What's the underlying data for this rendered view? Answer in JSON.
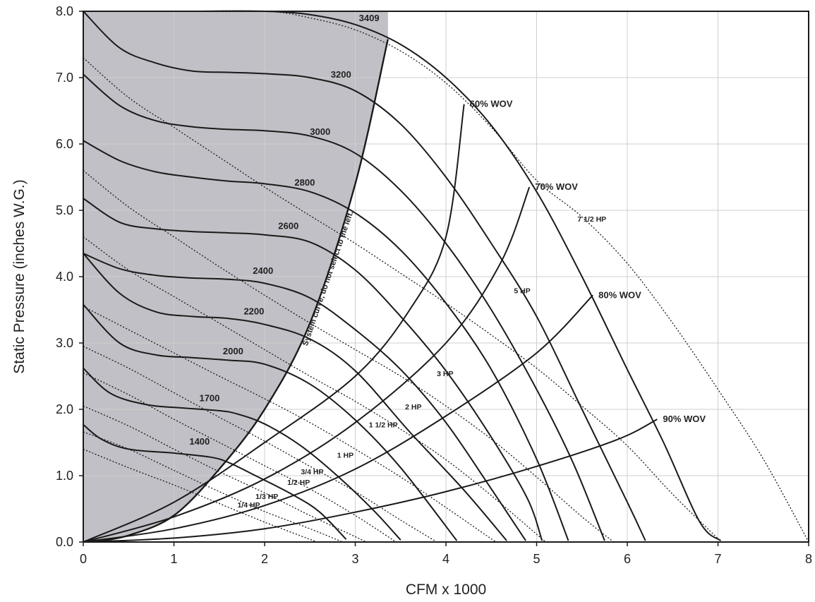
{
  "chart_data": {
    "type": "line",
    "xlabel": "CFM x 1000",
    "ylabel": "Static Pressure (inches W.G.)",
    "xlim": [
      0,
      8
    ],
    "ylim": [
      0,
      8
    ],
    "x_ticks": [
      "0",
      "1",
      "2",
      "3",
      "4",
      "5",
      "6",
      "7",
      "8"
    ],
    "y_ticks": [
      "0.0",
      "1.0",
      "2.0",
      "3.0",
      "4.0",
      "5.0",
      "6.0",
      "7.0",
      "8.0"
    ],
    "grid": true,
    "legend": "none",
    "colors": {
      "curve": "#1a1a1a",
      "shaded_region": "#c0c0c6",
      "grid": "#cfcfcf"
    },
    "system_curve": {
      "label": "System curve, do not select to the left.",
      "points": [
        [
          0.1,
          0
        ],
        [
          0.5,
          0.1
        ],
        [
          1.0,
          0.4
        ],
        [
          1.5,
          1.1
        ],
        [
          2.0,
          2.0
        ],
        [
          2.5,
          3.3
        ],
        [
          3.0,
          5.4
        ],
        [
          3.36,
          7.58
        ]
      ]
    },
    "rpm_curves": [
      {
        "name": "1400",
        "label_at": [
          1.17,
          1.47
        ],
        "points": [
          [
            0,
            1.77
          ],
          [
            0.2,
            1.55
          ],
          [
            0.5,
            1.4
          ],
          [
            1.0,
            1.34
          ],
          [
            1.4,
            1.28
          ],
          [
            1.6,
            1.2
          ],
          [
            1.9,
            1.0
          ],
          [
            2.3,
            0.72
          ],
          [
            2.6,
            0.46
          ],
          [
            2.9,
            0.04
          ]
        ]
      },
      {
        "name": "1700",
        "label_at": [
          1.28,
          2.12
        ],
        "points": [
          [
            0,
            2.62
          ],
          [
            0.3,
            2.24
          ],
          [
            0.7,
            2.07
          ],
          [
            1.1,
            2.02
          ],
          [
            1.5,
            1.98
          ],
          [
            1.7,
            1.93
          ],
          [
            2.0,
            1.78
          ],
          [
            2.4,
            1.45
          ],
          [
            2.8,
            1.0
          ],
          [
            3.2,
            0.48
          ],
          [
            3.5,
            0.03
          ]
        ]
      },
      {
        "name": "2000",
        "label_at": [
          1.54,
          2.83
        ],
        "points": [
          [
            0,
            3.58
          ],
          [
            0.4,
            3.0
          ],
          [
            0.8,
            2.82
          ],
          [
            1.2,
            2.78
          ],
          [
            1.6,
            2.74
          ],
          [
            2.0,
            2.68
          ],
          [
            2.5,
            2.38
          ],
          [
            3.0,
            1.84
          ],
          [
            3.5,
            1.12
          ],
          [
            4.12,
            0.02
          ]
        ]
      },
      {
        "name": "2200",
        "label_at": [
          1.77,
          3.43
        ],
        "points": [
          [
            0,
            4.35
          ],
          [
            0.4,
            3.75
          ],
          [
            0.8,
            3.47
          ],
          [
            1.2,
            3.4
          ],
          [
            1.6,
            3.37
          ],
          [
            2.0,
            3.28
          ],
          [
            2.5,
            3.06
          ],
          [
            3.0,
            2.58
          ],
          [
            3.6,
            1.66
          ],
          [
            4.2,
            0.78
          ],
          [
            4.67,
            0.02
          ]
        ]
      },
      {
        "name": "2600",
        "label_at": [
          2.15,
          4.72
        ],
        "points": [
          [
            0,
            5.18
          ],
          [
            0.4,
            4.82
          ],
          [
            0.8,
            4.72
          ],
          [
            1.2,
            4.68
          ],
          [
            1.6,
            4.66
          ],
          [
            2.0,
            4.63
          ],
          [
            2.5,
            4.52
          ],
          [
            3.0,
            4.1
          ],
          [
            3.5,
            3.4
          ],
          [
            4.0,
            2.58
          ],
          [
            4.5,
            1.58
          ],
          [
            4.9,
            0.65
          ],
          [
            5.06,
            0.02
          ]
        ]
      },
      {
        "name": "2400",
        "label_at": [
          1.87,
          4.04
        ],
        "points": [
          [
            0,
            4.35
          ],
          [
            0.4,
            4.12
          ],
          [
            0.8,
            4.02
          ],
          [
            1.2,
            3.98
          ],
          [
            1.6,
            3.96
          ],
          [
            2.0,
            3.9
          ],
          [
            2.5,
            3.68
          ],
          [
            3.0,
            3.2
          ],
          [
            3.5,
            2.6
          ],
          [
            4.0,
            1.8
          ],
          [
            4.5,
            0.8
          ],
          [
            4.88,
            0.02
          ]
        ]
      },
      {
        "name": "2800",
        "label_at": [
          2.33,
          5.37
        ],
        "points": [
          [
            0,
            6.05
          ],
          [
            0.4,
            5.75
          ],
          [
            0.8,
            5.58
          ],
          [
            1.2,
            5.5
          ],
          [
            1.6,
            5.44
          ],
          [
            2.0,
            5.4
          ],
          [
            2.5,
            5.28
          ],
          [
            3.0,
            4.96
          ],
          [
            3.5,
            4.4
          ],
          [
            4.0,
            3.6
          ],
          [
            4.5,
            2.6
          ],
          [
            5.0,
            1.25
          ],
          [
            5.35,
            0.02
          ]
        ]
      },
      {
        "name": "3000",
        "label_at": [
          2.5,
          6.14
        ],
        "points": [
          [
            0,
            7.05
          ],
          [
            0.4,
            6.58
          ],
          [
            0.8,
            6.35
          ],
          [
            1.2,
            6.26
          ],
          [
            1.6,
            6.22
          ],
          [
            2.0,
            6.2
          ],
          [
            2.5,
            6.12
          ],
          [
            3.0,
            5.86
          ],
          [
            3.5,
            5.3
          ],
          [
            4.0,
            4.5
          ],
          [
            4.5,
            3.5
          ],
          [
            5.0,
            2.3
          ],
          [
            5.4,
            1.2
          ],
          [
            5.75,
            0.02
          ]
        ]
      },
      {
        "name": "3200",
        "label_at": [
          2.73,
          7.0
        ],
        "points": [
          [
            0,
            8.0
          ],
          [
            0.4,
            7.45
          ],
          [
            0.8,
            7.22
          ],
          [
            1.2,
            7.1
          ],
          [
            1.6,
            7.08
          ],
          [
            2.0,
            7.06
          ],
          [
            2.5,
            7.0
          ],
          [
            3.0,
            6.8
          ],
          [
            3.5,
            6.3
          ],
          [
            4.0,
            5.5
          ],
          [
            4.5,
            4.5
          ],
          [
            5.0,
            3.4
          ],
          [
            5.5,
            2.0
          ],
          [
            6.0,
            0.6
          ],
          [
            6.2,
            0.02
          ]
        ]
      },
      {
        "name": "3409",
        "label_at": [
          3.04,
          7.85
        ],
        "points": [
          [
            0.7,
            8.0
          ],
          [
            1.2,
            8.0
          ],
          [
            2.0,
            8.0
          ],
          [
            2.5,
            7.95
          ],
          [
            3.0,
            7.8
          ],
          [
            3.5,
            7.5
          ],
          [
            4.0,
            7.0
          ],
          [
            4.5,
            6.28
          ],
          [
            5.0,
            5.28
          ],
          [
            5.5,
            4.0
          ],
          [
            6.0,
            2.6
          ],
          [
            6.4,
            1.5
          ],
          [
            6.8,
            0.3
          ],
          [
            7.03,
            0.02
          ]
        ]
      }
    ],
    "wov_lines": [
      {
        "name": "60% WOV",
        "points": [
          [
            0,
            0
          ],
          [
            1.0,
            0.6
          ],
          [
            2.0,
            1.5
          ],
          [
            3.0,
            2.5
          ],
          [
            3.6,
            3.5
          ],
          [
            4.0,
            4.6
          ],
          [
            4.2,
            6.6
          ]
        ]
      },
      {
        "name": "70% WOV",
        "points": [
          [
            0,
            0
          ],
          [
            1.0,
            0.38
          ],
          [
            2.0,
            0.95
          ],
          [
            3.0,
            1.8
          ],
          [
            4.0,
            3.0
          ],
          [
            4.6,
            4.2
          ],
          [
            4.92,
            5.35
          ]
        ]
      },
      {
        "name": "80% WOV",
        "points": [
          [
            0,
            0
          ],
          [
            1.0,
            0.2
          ],
          [
            2.0,
            0.55
          ],
          [
            3.0,
            1.1
          ],
          [
            4.0,
            1.9
          ],
          [
            5.0,
            2.85
          ],
          [
            5.62,
            3.72
          ]
        ]
      },
      {
        "name": "90% WOV",
        "points": [
          [
            0,
            0
          ],
          [
            1.0,
            0.06
          ],
          [
            2.0,
            0.2
          ],
          [
            3.0,
            0.45
          ],
          [
            4.0,
            0.76
          ],
          [
            5.0,
            1.14
          ],
          [
            5.9,
            1.55
          ],
          [
            6.33,
            1.85
          ]
        ]
      }
    ],
    "hp_lines": [
      {
        "name": "1/4 HP",
        "label_at": [
          1.7,
          0.52
        ],
        "points": [
          [
            0,
            1.4
          ],
          [
            0.5,
            1.12
          ],
          [
            1.0,
            0.86
          ],
          [
            1.5,
            0.58
          ],
          [
            2.0,
            0.3
          ],
          [
            2.58,
            0.0
          ]
        ]
      },
      {
        "name": "1/3 HP",
        "label_at": [
          1.9,
          0.65
        ],
        "points": [
          [
            0,
            1.66
          ],
          [
            0.5,
            1.4
          ],
          [
            1.0,
            1.08
          ],
          [
            1.5,
            0.76
          ],
          [
            2.0,
            0.46
          ],
          [
            2.5,
            0.2
          ],
          [
            2.86,
            0.0
          ]
        ]
      },
      {
        "name": "1/2 HP",
        "label_at": [
          2.25,
          0.86
        ],
        "points": [
          [
            0,
            2.05
          ],
          [
            0.5,
            1.75
          ],
          [
            1.0,
            1.4
          ],
          [
            1.5,
            1.06
          ],
          [
            2.0,
            0.74
          ],
          [
            2.5,
            0.4
          ],
          [
            3.0,
            0.08
          ],
          [
            3.12,
            0.0
          ]
        ]
      },
      {
        "name": "3/4 HP",
        "label_at": [
          2.4,
          1.02
        ],
        "points": [
          [
            0,
            2.55
          ],
          [
            0.5,
            2.22
          ],
          [
            1.0,
            1.85
          ],
          [
            1.5,
            1.5
          ],
          [
            2.0,
            1.15
          ],
          [
            2.5,
            0.8
          ],
          [
            3.0,
            0.4
          ],
          [
            3.45,
            0.0
          ]
        ]
      },
      {
        "name": "1 HP",
        "label_at": [
          2.8,
          1.27
        ],
        "points": [
          [
            0,
            2.95
          ],
          [
            0.5,
            2.62
          ],
          [
            1.0,
            2.25
          ],
          [
            1.5,
            1.88
          ],
          [
            2.0,
            1.52
          ],
          [
            2.5,
            1.14
          ],
          [
            3.0,
            0.76
          ],
          [
            3.5,
            0.33
          ],
          [
            3.9,
            0.0
          ]
        ]
      },
      {
        "name": "1 1/2 HP",
        "label_at": [
          3.15,
          1.73
        ],
        "points": [
          [
            0,
            3.55
          ],
          [
            0.5,
            3.2
          ],
          [
            1.0,
            2.85
          ],
          [
            1.5,
            2.5
          ],
          [
            2.0,
            2.16
          ],
          [
            2.5,
            1.8
          ],
          [
            3.0,
            1.4
          ],
          [
            3.5,
            0.98
          ],
          [
            4.0,
            0.52
          ],
          [
            4.55,
            0.0
          ]
        ]
      },
      {
        "name": "2 HP",
        "label_at": [
          3.55,
          2.0
        ],
        "points": [
          [
            0,
            4.6
          ],
          [
            0.5,
            4.1
          ],
          [
            1.0,
            3.7
          ],
          [
            1.5,
            3.3
          ],
          [
            2.0,
            2.9
          ],
          [
            2.5,
            2.5
          ],
          [
            3.0,
            2.12
          ],
          [
            3.5,
            1.7
          ],
          [
            4.0,
            1.24
          ],
          [
            4.5,
            0.7
          ],
          [
            5.1,
            0.0
          ]
        ]
      },
      {
        "name": "3 HP",
        "label_at": [
          3.9,
          2.5
        ],
        "points": [
          [
            0,
            5.6
          ],
          [
            0.5,
            5.05
          ],
          [
            1.0,
            4.6
          ],
          [
            1.5,
            4.15
          ],
          [
            2.0,
            3.72
          ],
          [
            2.5,
            3.3
          ],
          [
            3.0,
            2.9
          ],
          [
            3.5,
            2.5
          ],
          [
            4.0,
            2.05
          ],
          [
            4.5,
            1.55
          ],
          [
            5.0,
            0.98
          ],
          [
            5.5,
            0.38
          ],
          [
            5.85,
            0.0
          ]
        ]
      },
      {
        "name": "5 HP",
        "label_at": [
          4.75,
          3.75
        ],
        "points": [
          [
            0,
            7.3
          ],
          [
            0.5,
            6.7
          ],
          [
            1.0,
            6.25
          ],
          [
            1.5,
            5.8
          ],
          [
            2.0,
            5.35
          ],
          [
            2.5,
            4.92
          ],
          [
            3.0,
            4.5
          ],
          [
            3.5,
            4.05
          ],
          [
            4.0,
            3.6
          ],
          [
            4.5,
            3.12
          ],
          [
            5.0,
            2.62
          ],
          [
            5.5,
            2.05
          ],
          [
            6.0,
            1.45
          ],
          [
            6.5,
            0.72
          ],
          [
            7.0,
            0.05
          ]
        ]
      },
      {
        "name": "7 1/2 HP",
        "label_at": [
          5.45,
          4.83
        ],
        "points": [
          [
            0.1,
            8.0
          ],
          [
            0.9,
            8.0
          ],
          [
            2.0,
            8.0
          ],
          [
            2.5,
            7.9
          ],
          [
            3.0,
            7.72
          ],
          [
            3.5,
            7.4
          ],
          [
            4.0,
            6.92
          ],
          [
            4.5,
            6.25
          ],
          [
            5.0,
            5.45
          ],
          [
            5.5,
            4.9
          ],
          [
            6.0,
            4.2
          ],
          [
            6.5,
            3.3
          ],
          [
            7.0,
            2.3
          ],
          [
            7.5,
            1.25
          ],
          [
            8.0,
            0.0
          ]
        ]
      }
    ],
    "annotations": [
      "60% WOV",
      "70% WOV",
      "80% WOV",
      "90% WOV"
    ]
  }
}
